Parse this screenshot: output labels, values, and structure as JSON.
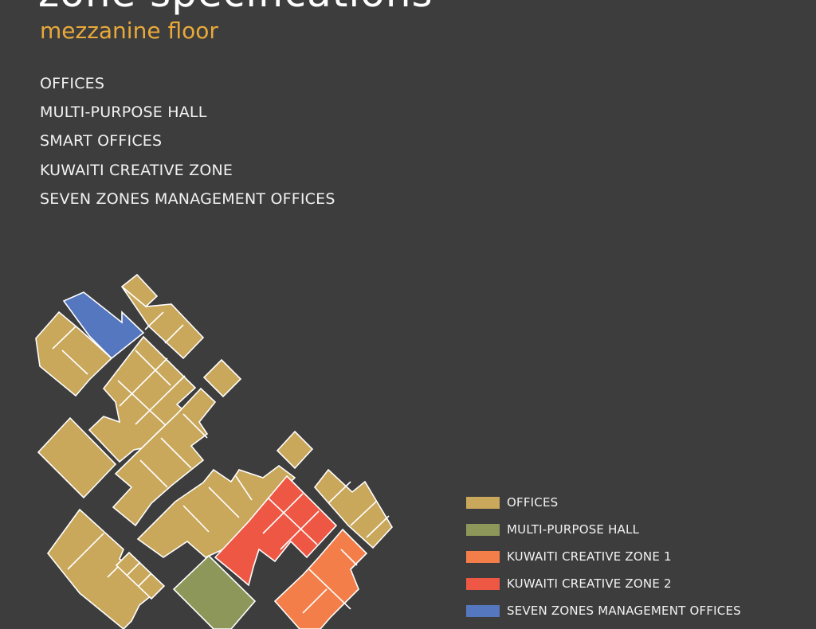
{
  "header": {
    "title": "zone specifications",
    "subtitle": "mezzanine floor"
  },
  "zone_list": [
    "OFFICES",
    "MULTI-PURPOSE HALL",
    "SMART OFFICES",
    "KUWAITI CREATIVE ZONE",
    "SEVEN ZONES MANAGEMENT OFFICES"
  ],
  "legend": [
    {
      "label": "OFFICES",
      "color": "#c9a75b"
    },
    {
      "label": "MULTI-PURPOSE HALL",
      "color": "#8c9759"
    },
    {
      "label": "KUWAITI CREATIVE ZONE 1",
      "color": "#f37e4a"
    },
    {
      "label": "KUWAITI CREATIVE ZONE 2",
      "color": "#ee5744"
    },
    {
      "label": "SEVEN ZONES MANAGEMENT OFFICES",
      "color": "#5577bf"
    }
  ],
  "colors": {
    "background": "#3d3d3d",
    "title": "#ffffff",
    "subtitle": "#e8a93a",
    "room_outline": "#ffffff"
  }
}
